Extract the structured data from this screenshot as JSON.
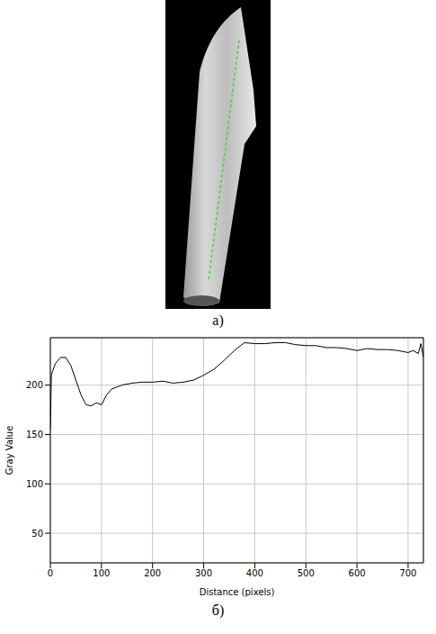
{
  "chart_data": {
    "type": "line",
    "x_label": "Distance (pixels)",
    "y_label": "Gray Value",
    "x": [
      0,
      2,
      5,
      10,
      20,
      30,
      40,
      50,
      60,
      70,
      80,
      90,
      100,
      110,
      120,
      140,
      160,
      180,
      200,
      220,
      240,
      260,
      280,
      300,
      320,
      340,
      360,
      380,
      400,
      420,
      440,
      460,
      480,
      500,
      520,
      540,
      560,
      580,
      600,
      620,
      640,
      660,
      680,
      700,
      710,
      720,
      725,
      730
    ],
    "values": [
      155,
      210,
      215,
      222,
      228,
      228,
      220,
      205,
      190,
      180,
      179,
      182,
      180,
      190,
      196,
      200,
      202,
      203,
      203,
      204,
      202,
      203,
      205,
      210,
      216,
      225,
      235,
      243,
      242,
      242,
      243,
      243,
      241,
      240,
      240,
      238,
      238,
      237,
      235,
      237,
      236,
      236,
      235,
      233,
      235,
      232,
      242,
      228
    ],
    "color": "#000000",
    "xlim": [
      0,
      730
    ],
    "xticks": [
      0,
      100,
      200,
      300,
      400,
      500,
      600,
      700
    ],
    "ylim": [
      20,
      248
    ],
    "yticks": [
      50,
      100,
      150,
      200
    ],
    "grid": true
  },
  "panel_labels": [
    "а)",
    "б)"
  ]
}
